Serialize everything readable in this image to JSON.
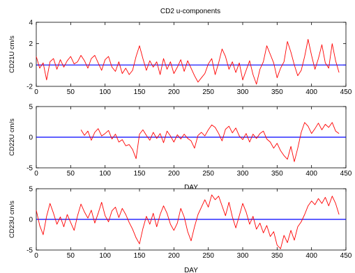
{
  "figure_title": "CD2 u-components",
  "chart_data": [
    {
      "type": "line",
      "ylabel": "CD21U cm/s",
      "xlabel": "",
      "xlim": [
        0,
        450
      ],
      "ylim": [
        -2,
        4
      ],
      "xticks": [
        0,
        50,
        100,
        150,
        200,
        250,
        300,
        350,
        400,
        450
      ],
      "yticks": [
        -2,
        0,
        2,
        4
      ],
      "zero_line_color": "#0000ff",
      "series_color": "#ff0000",
      "series": [
        {
          "x": [
            0,
            5,
            10,
            15,
            20,
            25,
            30,
            35,
            40,
            45,
            50,
            55,
            60,
            65,
            70,
            75,
            80,
            85,
            90,
            95,
            100,
            105,
            110,
            115,
            120,
            125,
            130,
            135,
            140,
            145,
            150,
            155,
            160,
            165,
            170,
            175,
            180,
            185,
            190,
            195,
            200,
            205,
            210,
            215,
            220,
            225,
            230,
            235,
            240,
            245,
            250,
            255,
            260,
            265,
            270,
            275,
            280,
            285,
            290,
            295,
            300,
            305,
            310,
            315,
            320,
            325,
            330,
            335,
            340,
            345,
            350,
            355,
            360,
            365,
            370,
            375,
            380,
            385,
            390,
            395,
            400,
            405,
            410,
            415,
            420,
            425,
            430,
            435,
            440
          ],
          "y": [
            0.8,
            -0.3,
            0.2,
            -1.4,
            0.3,
            0.6,
            -0.4,
            0.5,
            -0.2,
            0.4,
            0.8,
            0.1,
            0.3,
            0.9,
            0.4,
            -0.3,
            0.6,
            0.9,
            0.2,
            -0.5,
            0.5,
            0.8,
            -0.2,
            -0.6,
            0.3,
            -0.8,
            -0.3,
            -0.9,
            -0.5,
            0.8,
            1.8,
            0.6,
            -0.5,
            0.4,
            -0.2,
            0.3,
            -0.9,
            0.6,
            -0.4,
            0.3,
            -0.8,
            -0.2,
            0.5,
            -0.6,
            0.4,
            -0.3,
            -1.0,
            -1.6,
            -1.2,
            -0.8,
            0.1,
            0.6,
            -0.9,
            0.2,
            1.5,
            0.8,
            -0.4,
            0.3,
            -0.7,
            0.2,
            -1.4,
            -0.5,
            0.4,
            -0.9,
            -1.8,
            -0.4,
            0.3,
            1.8,
            1.0,
            0.2,
            -1.2,
            -0.3,
            0.3,
            2.2,
            1.2,
            0.0,
            -1.0,
            -0.5,
            0.8,
            2.4,
            0.9,
            -0.4,
            0.6,
            1.9,
            0.2,
            -0.3,
            2.0,
            0.4,
            -0.7
          ]
        }
      ]
    },
    {
      "type": "line",
      "ylabel": "CD22U cm/s",
      "xlabel": "DAY",
      "xlim": [
        0,
        450
      ],
      "ylim": [
        -5,
        5
      ],
      "xticks": [
        0,
        50,
        100,
        150,
        200,
        250,
        300,
        350,
        400,
        450
      ],
      "yticks": [
        -5,
        0,
        5
      ],
      "zero_line_color": "#0000ff",
      "series_color": "#ff0000",
      "series": [
        {
          "x": [
            65,
            70,
            75,
            80,
            85,
            90,
            95,
            100,
            105,
            110,
            115,
            120,
            125,
            130,
            135,
            140,
            145,
            150,
            155,
            160,
            165,
            170,
            175,
            180,
            185,
            190,
            195,
            200,
            205,
            210,
            215,
            220,
            225,
            230,
            235,
            240,
            245,
            250,
            255,
            260,
            265,
            270,
            275,
            280,
            285,
            290,
            295,
            300,
            305,
            310,
            315,
            320,
            325,
            330,
            335,
            340,
            345,
            350,
            355,
            360,
            365,
            370,
            375,
            380,
            385,
            390,
            395,
            400,
            405,
            410,
            415,
            420,
            425,
            430,
            435,
            440
          ],
          "y": [
            1.2,
            0.3,
            1.0,
            -0.5,
            0.8,
            1.4,
            0.2,
            0.6,
            1.1,
            -0.3,
            0.5,
            -0.8,
            -0.4,
            -1.4,
            -1.2,
            -2.0,
            -3.5,
            0.5,
            1.2,
            0.3,
            -0.5,
            0.8,
            -0.2,
            0.6,
            -0.9,
            1.0,
            0.2,
            -0.8,
            0.4,
            -0.3,
            0.5,
            -0.2,
            -0.6,
            -1.8,
            0.3,
            0.8,
            0.2,
            1.2,
            2.0,
            1.6,
            0.6,
            -0.6,
            1.3,
            1.8,
            0.7,
            1.5,
            0.2,
            -0.4,
            0.6,
            -0.8,
            0.5,
            -0.2,
            0.6,
            1.0,
            -0.3,
            -0.8,
            -1.8,
            -1.0,
            -2.2,
            -3.0,
            -3.6,
            -1.5,
            -4.0,
            -1.8,
            0.8,
            2.4,
            1.8,
            0.6,
            1.4,
            2.3,
            1.2,
            2.1,
            1.6,
            2.4,
            1.0,
            0.6
          ]
        }
      ]
    },
    {
      "type": "line",
      "ylabel": "CD23U cm/s",
      "xlabel": "DAY",
      "xlim": [
        0,
        450
      ],
      "ylim": [
        -5,
        5
      ],
      "xticks": [
        0,
        50,
        100,
        150,
        200,
        250,
        300,
        350,
        400,
        450
      ],
      "yticks": [
        -5,
        0,
        5
      ],
      "zero_line_color": "#0000ff",
      "series_color": "#ff0000",
      "series": [
        {
          "x": [
            0,
            5,
            10,
            15,
            20,
            25,
            30,
            35,
            40,
            45,
            50,
            55,
            60,
            65,
            70,
            75,
            80,
            85,
            90,
            95,
            100,
            105,
            110,
            115,
            120,
            125,
            130,
            135,
            140,
            145,
            150,
            155,
            160,
            165,
            170,
            175,
            180,
            185,
            190,
            195,
            200,
            205,
            210,
            215,
            220,
            225,
            230,
            235,
            240,
            245,
            250,
            255,
            260,
            265,
            270,
            275,
            280,
            285,
            290,
            295,
            300,
            305,
            310,
            315,
            320,
            325,
            330,
            335,
            340,
            345,
            350,
            355,
            360,
            365,
            370,
            375,
            380,
            385,
            390,
            395,
            400,
            405,
            410,
            415,
            420,
            425,
            430,
            435,
            440
          ],
          "y": [
            1.5,
            -1.0,
            -2.5,
            0.5,
            2.6,
            1.0,
            -0.8,
            0.4,
            -1.2,
            0.8,
            -0.5,
            -1.8,
            0.6,
            2.5,
            1.2,
            0.2,
            1.5,
            -0.6,
            1.0,
            2.8,
            0.6,
            -0.4,
            1.4,
            2.0,
            0.3,
            1.8,
            0.8,
            -0.5,
            -1.6,
            -3.0,
            -4.0,
            -1.5,
            0.5,
            -0.8,
            1.0,
            -1.2,
            0.8,
            2.2,
            1.0,
            -0.8,
            -1.8,
            -0.6,
            1.8,
            0.4,
            -2.0,
            -3.5,
            -1.2,
            0.8,
            2.0,
            3.2,
            2.0,
            4.0,
            3.2,
            3.8,
            2.2,
            0.6,
            2.8,
            0.4,
            -1.4,
            0.6,
            2.6,
            1.2,
            -0.8,
            0.5,
            -1.6,
            -0.6,
            -2.2,
            -1.0,
            -2.8,
            -2.0,
            -4.2,
            -4.8,
            -2.6,
            -3.8,
            -1.8,
            -3.4,
            -1.2,
            -0.4,
            0.8,
            2.2,
            3.0,
            2.4,
            3.4,
            2.6,
            3.6,
            2.2,
            3.8,
            2.6,
            0.8
          ]
        }
      ]
    }
  ]
}
